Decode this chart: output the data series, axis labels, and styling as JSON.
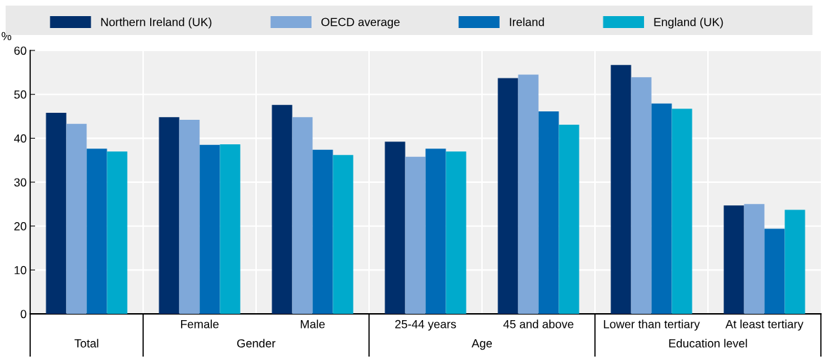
{
  "chart_data": {
    "type": "bar",
    "ylabel": "%",
    "categories": [
      null,
      "Female",
      "Male",
      "25-44 years",
      "45 and above",
      "Lower than tertiary",
      "At least tertiary"
    ],
    "annotations": [
      "Total",
      "Gender",
      "Age",
      "Education level"
    ],
    "series": [
      {
        "name": "Northern Ireland (UK)",
        "color": "#002f6c",
        "values": [
          45.8,
          44.8,
          47.6,
          39.2,
          53.7,
          56.7,
          24.7
        ]
      },
      {
        "name": "OECD average",
        "color": "#7fa8d9",
        "values": [
          43.3,
          44.2,
          44.8,
          35.8,
          54.5,
          53.9,
          25.0
        ]
      },
      {
        "name": "Ireland",
        "color": "#006bb6",
        "values": [
          37.6,
          38.5,
          37.4,
          37.6,
          46.1,
          47.9,
          19.4
        ]
      },
      {
        "name": "England (UK)",
        "color": "#00aacc",
        "values": [
          37.0,
          38.6,
          36.2,
          37.0,
          43.1,
          46.7,
          23.7
        ]
      }
    ],
    "ylim": [
      0,
      60
    ],
    "yticks": [
      0,
      10,
      20,
      30,
      40,
      50,
      60
    ],
    "grid": "y",
    "legend": "top"
  }
}
